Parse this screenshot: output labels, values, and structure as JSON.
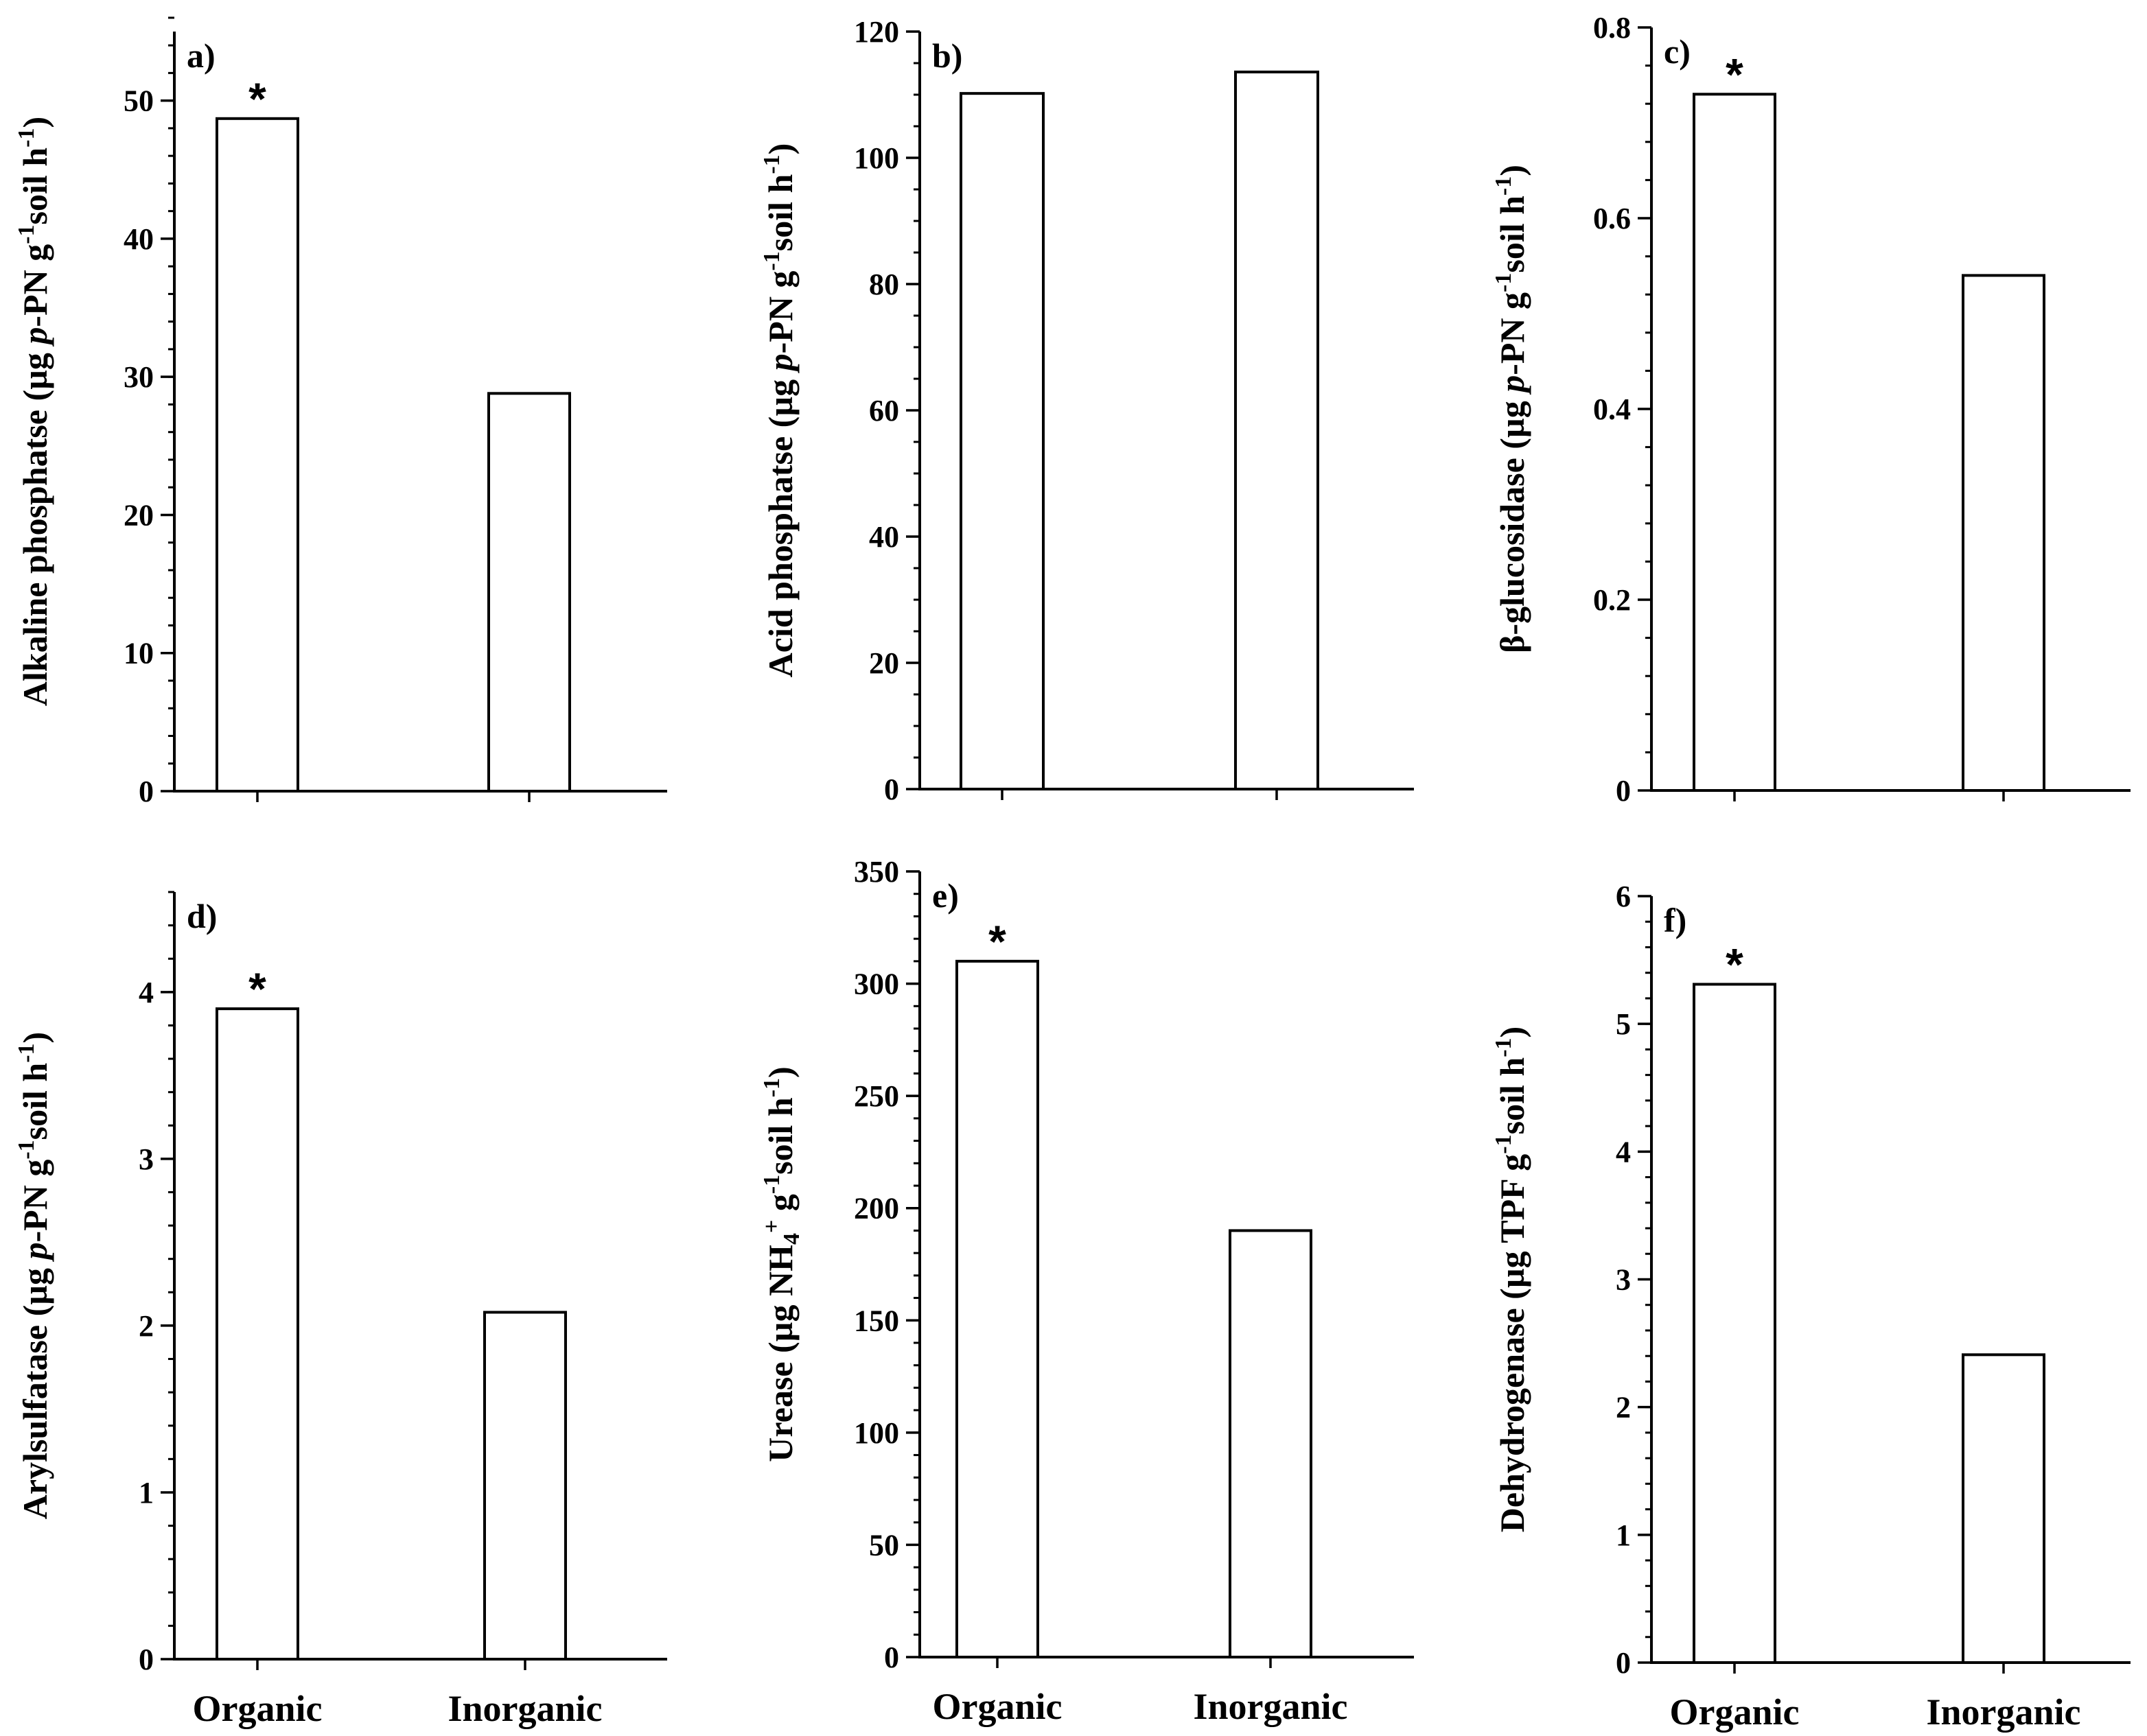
{
  "chart_data": [
    {
      "type": "bar",
      "panel": "a)",
      "categories": [
        "Organic",
        "Inorganic"
      ],
      "values": [
        48.7,
        28.8
      ],
      "significant": [
        "*",
        ""
      ],
      "ylim": [
        0,
        55
      ],
      "major_step": 10,
      "minor_step": 2,
      "tick_labels": [
        "0",
        "10",
        "20",
        "30",
        "40",
        "50"
      ],
      "ylabel_parts": [
        {
          "text": "Alkaline phosphatse (µg "
        },
        {
          "text": "p",
          "style": "italic"
        },
        {
          "text": "-PN g"
        },
        {
          "text": "-1",
          "style": "sup"
        },
        {
          "text": "soil h"
        },
        {
          "text": "-1",
          "style": "sup"
        },
        {
          "text": ")"
        }
      ],
      "show_categories": false
    },
    {
      "type": "bar",
      "panel": "b)",
      "categories": [
        "Organic",
        "Inorganic"
      ],
      "values": [
        110.2,
        113.6
      ],
      "significant": [
        "",
        ""
      ],
      "ylim": [
        0,
        120
      ],
      "major_step": 20,
      "minor_step": 5,
      "tick_labels": [
        "0",
        "20",
        "40",
        "60",
        "80",
        "100",
        "120"
      ],
      "ylabel_parts": [
        {
          "text": "Acid phosphatse (µg "
        },
        {
          "text": "p",
          "style": "italic"
        },
        {
          "text": "-PN g"
        },
        {
          "text": "-1",
          "style": "sup"
        },
        {
          "text": "soil h"
        },
        {
          "text": "-1",
          "style": "sup"
        },
        {
          "text": ")"
        }
      ],
      "show_categories": false
    },
    {
      "type": "bar",
      "panel": "c)",
      "categories": [
        "Organic",
        "Inorganic"
      ],
      "values": [
        0.73,
        0.54
      ],
      "significant": [
        "*",
        ""
      ],
      "ylim": [
        0,
        0.8
      ],
      "major_step": 0.2,
      "minor_step": 0.04,
      "tick_labels": [
        "0",
        "0.2",
        "0.4",
        "0.6",
        "0.8"
      ],
      "ylabel_parts": [
        {
          "text": "β-glucosidase (µg "
        },
        {
          "text": "p",
          "style": "italic"
        },
        {
          "text": "-PN g"
        },
        {
          "text": "-1",
          "style": "sup"
        },
        {
          "text": "soil h"
        },
        {
          "text": "-1",
          "style": "sup"
        },
        {
          "text": ")"
        }
      ],
      "show_categories": false
    },
    {
      "type": "bar",
      "panel": "d)",
      "categories": [
        "Organic",
        "Inorganic"
      ],
      "values": [
        3.9,
        2.08
      ],
      "significant": [
        "*",
        ""
      ],
      "ylim": [
        0,
        4.6
      ],
      "major_step": 1,
      "minor_step": 0.2,
      "tick_labels": [
        "0",
        "1",
        "2",
        "3",
        "4"
      ],
      "ylabel_parts": [
        {
          "text": "Arylsulfatase (µg "
        },
        {
          "text": "p",
          "style": "italic"
        },
        {
          "text": "-PN g"
        },
        {
          "text": "-1",
          "style": "sup"
        },
        {
          "text": "soil h"
        },
        {
          "text": "-1",
          "style": "sup"
        },
        {
          "text": ")"
        }
      ],
      "show_categories": true
    },
    {
      "type": "bar",
      "panel": "e)",
      "categories": [
        "Organic",
        "Inorganic"
      ],
      "values": [
        310,
        190
      ],
      "significant": [
        "*",
        ""
      ],
      "ylim": [
        0,
        350
      ],
      "major_step": 50,
      "minor_step": 10,
      "tick_labels": [
        "0",
        "50",
        "100",
        "150",
        "200",
        "250",
        "300",
        "350"
      ],
      "ylabel_parts": [
        {
          "text": "Urease (µg NH"
        },
        {
          "text": "4",
          "style": "sub"
        },
        {
          "text": "+",
          "style": "sup"
        },
        {
          "text": " g"
        },
        {
          "text": "-1",
          "style": "sup"
        },
        {
          "text": "soil h"
        },
        {
          "text": "-1",
          "style": "sup"
        },
        {
          "text": ")"
        }
      ],
      "show_categories": true
    },
    {
      "type": "bar",
      "panel": "f)",
      "categories": [
        "Organic",
        "Inorganic"
      ],
      "values": [
        5.31,
        2.41
      ],
      "significant": [
        "*",
        ""
      ],
      "ylim": [
        0,
        6
      ],
      "major_step": 1,
      "minor_step": 0.2,
      "tick_labels": [
        "0",
        "1",
        "2",
        "3",
        "4",
        "5",
        "6"
      ],
      "ylabel_parts": [
        {
          "text": "Dehydrogenase (µg TPF g"
        },
        {
          "text": "-1",
          "style": "sup"
        },
        {
          "text": "soil h"
        },
        {
          "text": "-1",
          "style": "sup"
        },
        {
          "text": ")"
        }
      ],
      "show_categories": true
    }
  ]
}
